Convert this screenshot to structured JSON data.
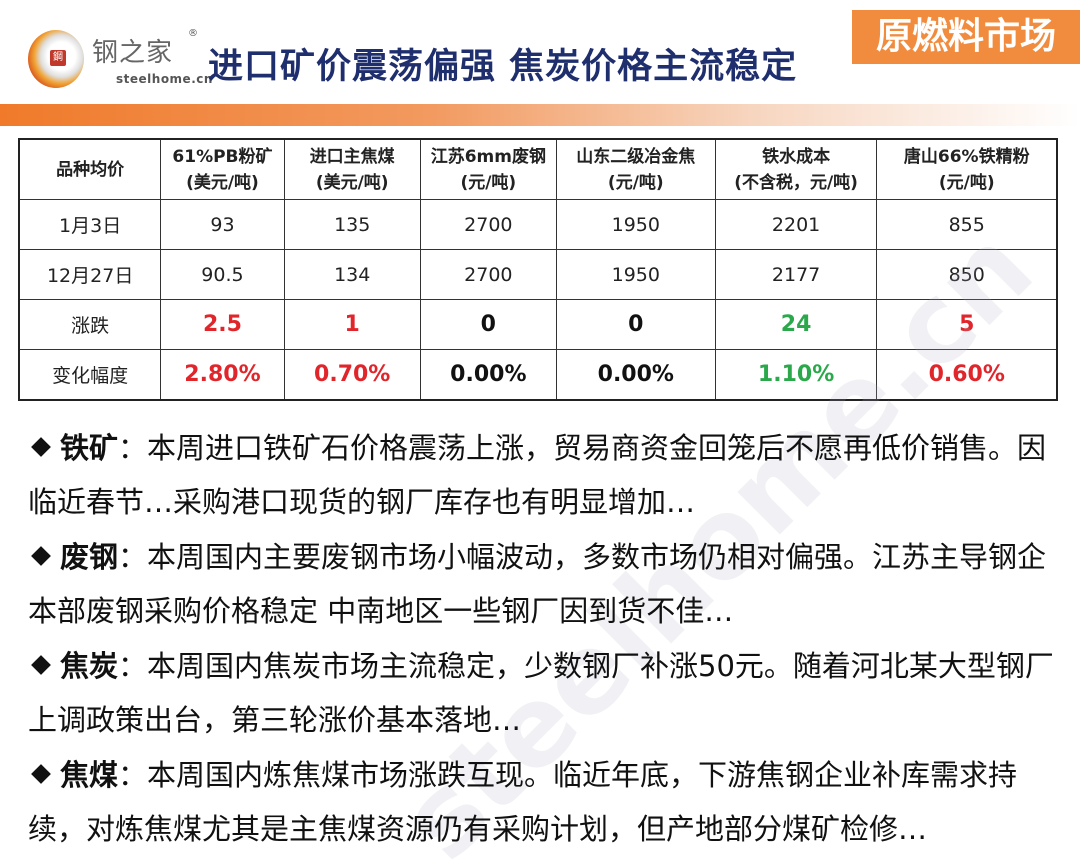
{
  "logo": {
    "name_cn": "钢之家",
    "reg": "®",
    "domain": "steelhome.cn",
    "seal": "鋼"
  },
  "title": "进口矿价震荡偏强 焦炭价格主流稳定",
  "section": "原燃料市场",
  "table": {
    "headers": [
      [
        "品种均价",
        ""
      ],
      [
        "61%PB粉矿",
        "(美元/吨)"
      ],
      [
        "进口主焦煤",
        "(美元/吨)"
      ],
      [
        "江苏6mm废钢",
        "(元/吨)"
      ],
      [
        "山东二级冶金焦",
        "(元/吨)"
      ],
      [
        "铁水成本",
        "(不含税，元/吨)"
      ],
      [
        "唐山66%铁精粉",
        "(元/吨)"
      ]
    ],
    "rows": [
      [
        "1月3日",
        "93",
        "135",
        "2700",
        "1950",
        "2201",
        "855"
      ],
      [
        "12月27日",
        "90.5",
        "134",
        "2700",
        "1950",
        "2177",
        "850"
      ],
      [
        "涨跌",
        "2.5",
        "1",
        "0",
        "0",
        "24",
        "5"
      ],
      [
        "变化幅度",
        "2.80%",
        "0.70%",
        "0.00%",
        "0.00%",
        "1.10%",
        "0.60%"
      ]
    ],
    "colors": {
      "up": "#e0252b",
      "down": "#2aa84a",
      "flat": "#111111"
    }
  },
  "bullets": [
    {
      "label": "铁矿",
      "text": "：本周进口铁矿石价格震荡上涨，贸易商资金回笼后不愿再低价销售。因临近春节…采购港口现货的钢厂库存也有明显增加…"
    },
    {
      "label": "废钢",
      "text": "：本周国内主要废钢市场小幅波动，多数市场仍相对偏强。江苏主导钢企本部废钢采购价格稳定 中南地区一些钢厂因到货不佳…"
    },
    {
      "label": "焦炭",
      "text": "：本周国内焦炭市场主流稳定，少数钢厂补涨50元。随着河北某大型钢厂上调政策出台，第三轮涨价基本落地…"
    },
    {
      "label": "焦煤",
      "text": "：本周国内炼焦煤市场涨跌互现。临近年底，下游焦钢企业补库需求持续，对炼焦煤尤其是主焦煤资源仍有采购计划，但产地部分煤矿检修…"
    }
  ],
  "watermark": "steelhome.cn"
}
